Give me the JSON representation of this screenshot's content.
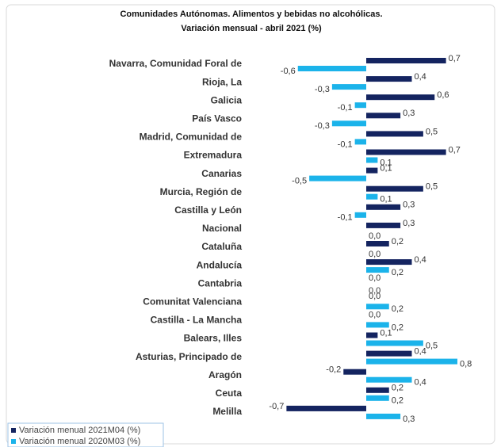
{
  "chart_data": {
    "type": "hbar",
    "title": "Comunidades Autónomas. Alimentos y bebidas no alcohólicas.",
    "subtitle": "Variación mensual - abril 2021  (%)",
    "categories": [
      "Navarra, Comunidad Foral de",
      "Rioja, La",
      "Galicia",
      "País Vasco",
      "Madrid, Comunidad de",
      "Extremadura",
      "Canarias",
      "Murcia, Región de",
      "Castilla y León",
      "Nacional",
      "Cataluña",
      "Andalucía",
      "Cantabria",
      "Comunitat Valenciana",
      "Castilla - La Mancha",
      "Balears, Illes",
      "Asturias, Principado de",
      "Aragón",
      "Ceuta",
      "Melilla"
    ],
    "series": [
      {
        "name": "Variación menual 2021M04 (%)",
        "color": "#142460",
        "values": [
          0.7,
          0.4,
          0.6,
          0.3,
          0.5,
          0.7,
          0.1,
          0.5,
          0.3,
          0.3,
          0.2,
          0.4,
          0.0,
          0.0,
          0.0,
          0.1,
          0.4,
          -0.2,
          0.2,
          -0.7
        ],
        "value_labels": [
          "0,7",
          "0,4",
          "0,6",
          "0,3",
          "0,5",
          "0,7",
          "0,1",
          "0,5",
          "0,3",
          "0,3",
          "0,2",
          "0,4",
          "0,0",
          "0,0",
          "0,0",
          "0,1",
          "0,4",
          "-0,2",
          "0,2",
          "-0,7"
        ]
      },
      {
        "name": "Variación menual 2020M03 (%)",
        "color": "#1bb3ea",
        "values": [
          -0.6,
          -0.3,
          -0.1,
          -0.3,
          -0.1,
          0.1,
          -0.5,
          0.1,
          -0.1,
          0.0,
          0.0,
          0.2,
          0.0,
          0.2,
          0.2,
          0.5,
          0.8,
          0.4,
          0.2,
          0.3
        ],
        "value_labels": [
          "-0,6",
          "-0,3",
          "-0,1",
          "-0,3",
          "-0,1",
          "0,1",
          "-0,5",
          "0,1",
          "-0,1",
          "0,0",
          "0,0",
          "0,2",
          "0,0",
          "0,2",
          "0,2",
          "0,5",
          "0,8",
          "0,4",
          "0,2",
          "0,3"
        ]
      }
    ],
    "xlim": [
      -0.8,
      0.8
    ]
  }
}
